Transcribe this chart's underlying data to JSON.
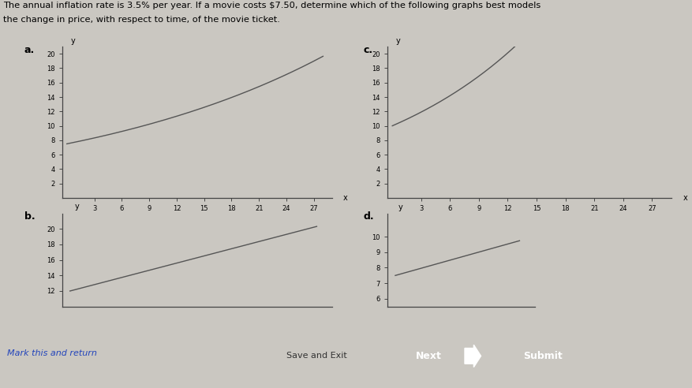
{
  "title_line1": "The annual inflation rate is 3.5% per year. If a movie costs $7.50, determine which of the following graphs best models",
  "title_line2": "the change in price, with respect to time, of the movie ticket.",
  "bg_color": "#cac7c1",
  "curve_color": "#555555",
  "graph_a_label": "a.",
  "graph_c_label": "c.",
  "graph_b_label": "b.",
  "graph_d_label": "d.",
  "yticks_20": [
    2,
    4,
    6,
    8,
    10,
    12,
    14,
    16,
    18,
    20
  ],
  "xticks_main": [
    3,
    6,
    9,
    12,
    15,
    18,
    21,
    24,
    27
  ],
  "yticks_b": [
    12,
    14,
    16,
    18,
    20
  ],
  "yticks_d": [
    6,
    7,
    8,
    9,
    10
  ],
  "link_text": "Mark this and return",
  "link_color": "#2244bb",
  "save_text": "Save and Exit",
  "next_text": "Next",
  "submit_text": "Submit",
  "btn_save_color": "#d0d0d0",
  "btn_next_color": "#4488cc",
  "btn_submit_color": "#1a3a7a",
  "bottom_bar_color": "#aaaaaa"
}
